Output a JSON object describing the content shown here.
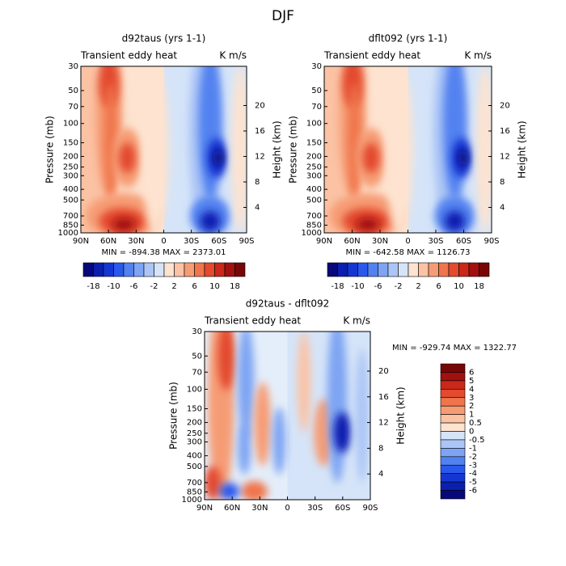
{
  "title": "DJF",
  "panels": [
    {
      "title": "d92taus (yrs 1-1)",
      "left_label": "Transient eddy heat",
      "right_label": "K m/s",
      "ylabel": "Pressure (mb)",
      "y2label": "Height (km)",
      "xticks": [
        "90N",
        "60N",
        "30N",
        "0",
        "30S",
        "60S",
        "90S"
      ],
      "yticks": [
        30,
        50,
        70,
        100,
        150,
        200,
        250,
        300,
        400,
        500,
        700,
        850,
        1000
      ],
      "y2ticks": [
        4,
        8,
        12,
        16,
        20
      ],
      "stats": "MIN = -894.38   MAX = 2373.01"
    },
    {
      "title": "dflt092 (yrs 1-1)",
      "left_label": "Transient eddy heat",
      "right_label": "K m/s",
      "ylabel": "Pressure (mb)",
      "y2label": "Height (km)",
      "xticks": [
        "90N",
        "60N",
        "30N",
        "0",
        "30S",
        "60S",
        "90S"
      ],
      "yticks": [
        30,
        50,
        70,
        100,
        150,
        200,
        250,
        300,
        400,
        500,
        700,
        850,
        1000
      ],
      "y2ticks": [
        4,
        8,
        12,
        16,
        20
      ],
      "stats": "MIN = -642.58   MAX = 1126.73"
    },
    {
      "title": "d92taus - dflt092",
      "left_label": "Transient eddy heat",
      "right_label": "K m/s",
      "ylabel": "Pressure (mb)",
      "y2label": "Height (km)",
      "xticks": [
        "90N",
        "60N",
        "30N",
        "0",
        "30S",
        "60S",
        "90S"
      ],
      "yticks": [
        30,
        50,
        70,
        100,
        150,
        200,
        250,
        300,
        400,
        500,
        700,
        850,
        1000
      ],
      "y2ticks": [
        4,
        8,
        12,
        16,
        20
      ],
      "stats": "MIN = -929.74   MAX = 1322.77"
    }
  ],
  "colors": [
    "#08087a",
    "#0a1fb0",
    "#1436d2",
    "#2a58ec",
    "#5282f0",
    "#7ea4f3",
    "#abc5f6",
    "#d5e4f8",
    "#fde3d0",
    "#fbc2a4",
    "#f69c74",
    "#f0744c",
    "#e34a2e",
    "#c9281a",
    "#a2100f",
    "#780606"
  ],
  "colorbar_top": {
    "labels": [
      -18,
      -10,
      -6,
      -2,
      2,
      6,
      10,
      18
    ]
  },
  "colorbar_diff": {
    "labels": [
      6,
      5,
      4,
      3,
      2,
      1,
      0.5,
      0,
      -0.5,
      -1,
      -2,
      -3,
      -4,
      -5,
      -6
    ]
  }
}
